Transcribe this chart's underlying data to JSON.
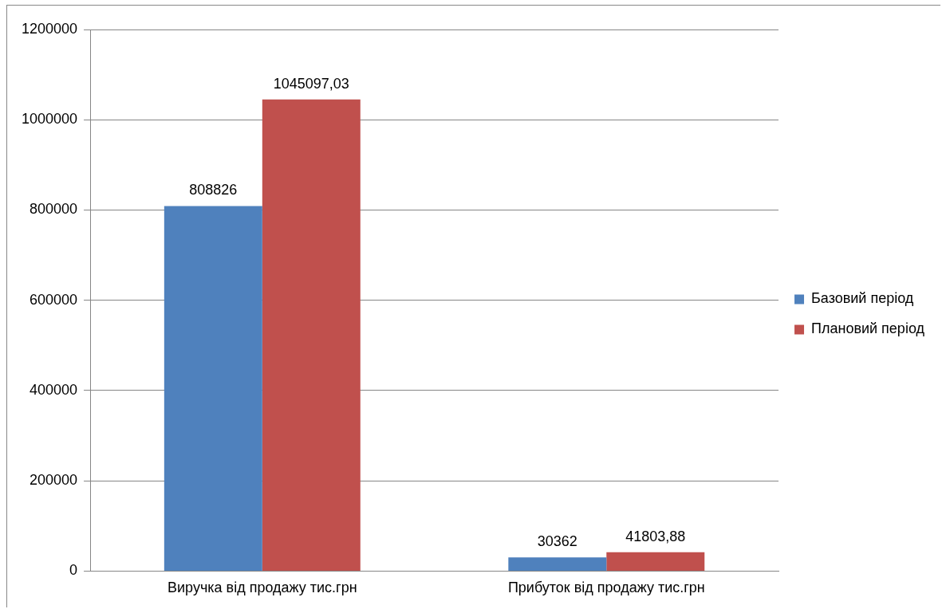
{
  "chart_data": {
    "type": "bar",
    "categories": [
      "Виручка від продажу тис.грн",
      "Прибуток від продажу тис.грн"
    ],
    "series": [
      {
        "name": "Базовий період",
        "color": "#4f81bd",
        "values": [
          808826,
          30362
        ],
        "value_labels": [
          "808826",
          "30362"
        ]
      },
      {
        "name": "Плановий період",
        "color": "#c0504d",
        "values": [
          1045097.03,
          41803.88
        ],
        "value_labels": [
          "1045097,03",
          "41803,88"
        ]
      }
    ],
    "ylim": [
      0,
      1200000
    ],
    "yticks": [
      0,
      200000,
      400000,
      600000,
      800000,
      1000000,
      1200000
    ],
    "grid": "y",
    "legend": "right"
  }
}
